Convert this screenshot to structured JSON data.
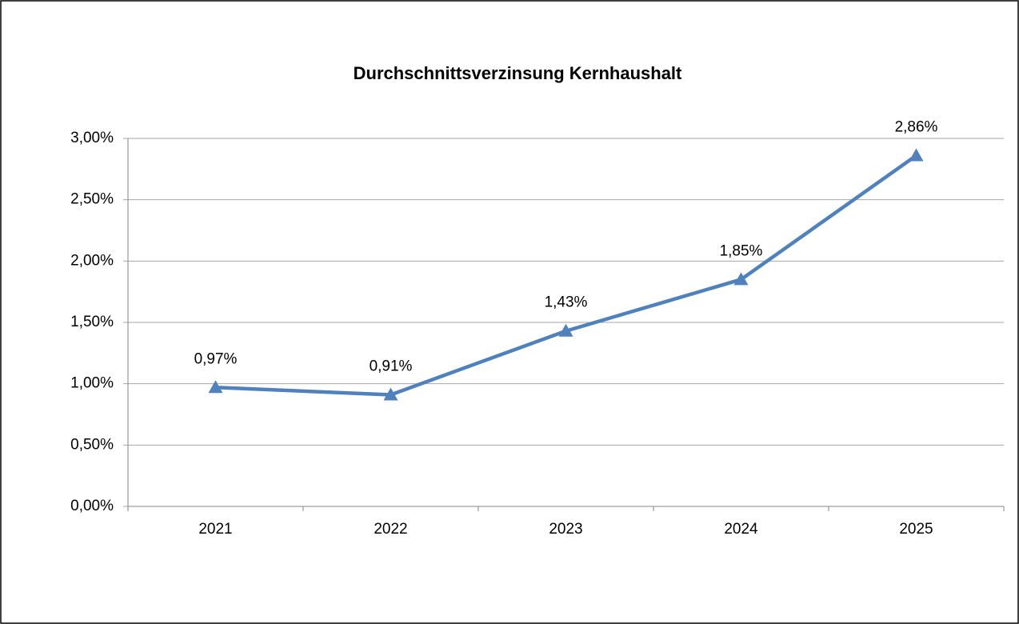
{
  "chart_data": {
    "type": "line",
    "title": "Durchschnittsverzinsung Kernhaushalt",
    "categories": [
      "2021",
      "2022",
      "2023",
      "2024",
      "2025"
    ],
    "series": [
      {
        "color": "#4f81bd",
        "values": [
          0.97,
          0.91,
          1.43,
          1.85,
          2.86
        ],
        "value_labels": [
          "0,97%",
          "0,91%",
          "1,43%",
          "1,85%",
          "2,86%"
        ]
      }
    ],
    "ylim": [
      0,
      3
    ],
    "yticks": [
      {
        "value": 0,
        "label": "0,00%"
      },
      {
        "value": 0.5,
        "label": "0,50%"
      },
      {
        "value": 1,
        "label": "1,00%"
      },
      {
        "value": 1.5,
        "label": "1,50%"
      },
      {
        "value": 2,
        "label": "2,00%"
      },
      {
        "value": 2.5,
        "label": "2,50%"
      },
      {
        "value": 3,
        "label": "3,00%"
      }
    ],
    "grid": true
  }
}
